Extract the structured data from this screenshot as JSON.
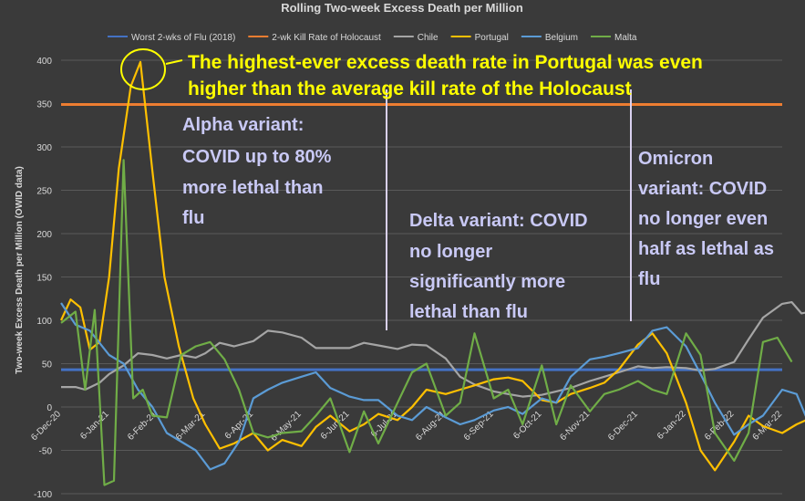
{
  "chart_data": {
    "type": "line",
    "title": "Rolling Two-week Excess Death per Million",
    "ylabel": "Two-week Excess Death per Million (OWID data)",
    "xlabel": "",
    "ylim": [
      -100,
      400
    ],
    "yticks": [
      -100,
      -50,
      0,
      50,
      100,
      150,
      200,
      250,
      300,
      350,
      400
    ],
    "x_tick_labels": [
      "6-Dec-20",
      "6-Jan-21",
      "6-Feb-21",
      "6-Mar-21",
      "6-Apr-21",
      "6-May-21",
      "6-Jun-21",
      "6-Jul-21",
      "6-Aug-21",
      "6-Sep-21",
      "6-Oct-21",
      "6-Nov-21",
      "6-Dec-21",
      "6-Jan-22",
      "6-Feb-22",
      "6-Mar-22"
    ],
    "grid": true,
    "legend_position": "top",
    "reference_lines": [
      {
        "name": "Worst 2-wks of Flu (2018)",
        "value": 43,
        "color": "#4472c4"
      },
      {
        "name": "2-wk Kill Rate of Holocaust",
        "value": 349,
        "color": "#ed7d31"
      }
    ],
    "series": [
      {
        "name": "Chile",
        "color": "#a5a5a5",
        "values": [
          [
            0,
            23
          ],
          [
            0.3,
            23
          ],
          [
            0.5,
            20
          ],
          [
            0.8,
            28
          ],
          [
            1,
            38
          ],
          [
            1.3,
            48
          ],
          [
            1.6,
            62
          ],
          [
            1.9,
            60
          ],
          [
            2.2,
            56
          ],
          [
            2.5,
            60
          ],
          [
            2.8,
            57
          ],
          [
            3,
            62
          ],
          [
            3.3,
            74
          ],
          [
            3.6,
            70
          ],
          [
            4,
            76
          ],
          [
            4.3,
            88
          ],
          [
            4.6,
            86
          ],
          [
            5,
            80
          ],
          [
            5.3,
            68
          ],
          [
            5.6,
            68
          ],
          [
            6,
            68
          ],
          [
            6.3,
            74
          ],
          [
            6.6,
            71
          ],
          [
            7,
            67
          ],
          [
            7.3,
            72
          ],
          [
            7.6,
            71
          ],
          [
            8,
            56
          ],
          [
            8.3,
            35
          ],
          [
            8.6,
            26
          ],
          [
            9,
            18
          ],
          [
            9.3,
            15
          ],
          [
            9.6,
            12
          ],
          [
            10,
            14
          ],
          [
            10.3,
            18
          ],
          [
            10.6,
            22
          ],
          [
            11,
            30
          ],
          [
            11.3,
            35
          ],
          [
            11.6,
            40
          ],
          [
            12,
            47
          ],
          [
            12.3,
            45
          ],
          [
            12.6,
            46
          ],
          [
            13,
            45
          ],
          [
            13.3,
            42
          ],
          [
            13.6,
            44
          ],
          [
            14,
            52
          ],
          [
            14.3,
            78
          ],
          [
            14.6,
            103
          ],
          [
            15,
            119
          ],
          [
            15.2,
            121
          ],
          [
            15.4,
            108
          ],
          [
            15.6,
            110
          ],
          [
            15.8,
            90
          ]
        ]
      },
      {
        "name": "Portugal",
        "color": "#ffc000",
        "values": [
          [
            0,
            100
          ],
          [
            0.2,
            124
          ],
          [
            0.4,
            115
          ],
          [
            0.6,
            66
          ],
          [
            0.8,
            75
          ],
          [
            1,
            150
          ],
          [
            1.2,
            275
          ],
          [
            1.45,
            370
          ],
          [
            1.65,
            398
          ],
          [
            1.9,
            272
          ],
          [
            2.15,
            150
          ],
          [
            2.45,
            70
          ],
          [
            2.75,
            10
          ],
          [
            3,
            -20
          ],
          [
            3.3,
            -48
          ],
          [
            3.6,
            -42
          ],
          [
            4,
            -30
          ],
          [
            4.3,
            -50
          ],
          [
            4.6,
            -38
          ],
          [
            5,
            -45
          ],
          [
            5.3,
            -23
          ],
          [
            5.6,
            -10
          ],
          [
            6,
            -28
          ],
          [
            6.3,
            -20
          ],
          [
            6.6,
            -8
          ],
          [
            7,
            -15
          ],
          [
            7.3,
            0
          ],
          [
            7.6,
            20
          ],
          [
            8,
            15
          ],
          [
            8.3,
            20
          ],
          [
            8.6,
            25
          ],
          [
            9,
            32
          ],
          [
            9.3,
            34
          ],
          [
            9.6,
            30
          ],
          [
            10,
            8
          ],
          [
            10.3,
            5
          ],
          [
            10.6,
            15
          ],
          [
            11,
            22
          ],
          [
            11.3,
            28
          ],
          [
            11.6,
            43
          ],
          [
            12,
            72
          ],
          [
            12.3,
            85
          ],
          [
            12.6,
            62
          ],
          [
            13,
            5
          ],
          [
            13.3,
            -50
          ],
          [
            13.6,
            -73
          ],
          [
            14,
            -40
          ],
          [
            14.3,
            -10
          ],
          [
            14.6,
            -22
          ],
          [
            15,
            -30
          ],
          [
            15.3,
            -20
          ],
          [
            15.5,
            -15
          ]
        ]
      },
      {
        "name": "Belgium",
        "color": "#5b9bd5",
        "values": [
          [
            0,
            120
          ],
          [
            0.3,
            95
          ],
          [
            0.6,
            88
          ],
          [
            1,
            60
          ],
          [
            1.3,
            50
          ],
          [
            1.6,
            20
          ],
          [
            1.9,
            0
          ],
          [
            2.2,
            -30
          ],
          [
            2.5,
            -40
          ],
          [
            2.8,
            -50
          ],
          [
            3.1,
            -72
          ],
          [
            3.4,
            -65
          ],
          [
            3.7,
            -40
          ],
          [
            4,
            10
          ],
          [
            4.3,
            20
          ],
          [
            4.6,
            28
          ],
          [
            5,
            35
          ],
          [
            5.3,
            40
          ],
          [
            5.6,
            22
          ],
          [
            6,
            12
          ],
          [
            6.3,
            8
          ],
          [
            6.6,
            8
          ],
          [
            7,
            -10
          ],
          [
            7.3,
            -15
          ],
          [
            7.6,
            0
          ],
          [
            8,
            -12
          ],
          [
            8.3,
            -20
          ],
          [
            8.6,
            -15
          ],
          [
            9,
            -4
          ],
          [
            9.3,
            0
          ],
          [
            9.6,
            -8
          ],
          [
            10,
            10
          ],
          [
            10.3,
            5
          ],
          [
            10.6,
            35
          ],
          [
            11,
            55
          ],
          [
            11.3,
            58
          ],
          [
            11.6,
            62
          ],
          [
            12,
            68
          ],
          [
            12.3,
            88
          ],
          [
            12.6,
            92
          ],
          [
            13,
            70
          ],
          [
            13.3,
            38
          ],
          [
            13.6,
            5
          ],
          [
            14,
            -32
          ],
          [
            14.3,
            -20
          ],
          [
            14.6,
            -10
          ],
          [
            15,
            20
          ],
          [
            15.3,
            15
          ],
          [
            15.6,
            -25
          ],
          [
            15.9,
            -52
          ]
        ]
      },
      {
        "name": "Malta",
        "color": "#70ad47",
        "values": [
          [
            0,
            97
          ],
          [
            0.3,
            110
          ],
          [
            0.5,
            20
          ],
          [
            0.7,
            112
          ],
          [
            0.9,
            -90
          ],
          [
            1.1,
            -85
          ],
          [
            1.3,
            285
          ],
          [
            1.5,
            10
          ],
          [
            1.7,
            20
          ],
          [
            1.9,
            -10
          ],
          [
            2.2,
            -12
          ],
          [
            2.5,
            60
          ],
          [
            2.8,
            70
          ],
          [
            3.1,
            75
          ],
          [
            3.4,
            55
          ],
          [
            3.7,
            20
          ],
          [
            4,
            -30
          ],
          [
            4.3,
            -35
          ],
          [
            4.6,
            -30
          ],
          [
            5,
            -28
          ],
          [
            5.3,
            -10
          ],
          [
            5.6,
            10
          ],
          [
            6,
            -52
          ],
          [
            6.3,
            -5
          ],
          [
            6.6,
            -42
          ],
          [
            7,
            5
          ],
          [
            7.3,
            40
          ],
          [
            7.6,
            50
          ],
          [
            8,
            -10
          ],
          [
            8.3,
            5
          ],
          [
            8.6,
            85
          ],
          [
            9,
            10
          ],
          [
            9.3,
            20
          ],
          [
            9.6,
            -20
          ],
          [
            10,
            48
          ],
          [
            10.3,
            -20
          ],
          [
            10.6,
            25
          ],
          [
            11,
            -5
          ],
          [
            11.3,
            15
          ],
          [
            11.6,
            20
          ],
          [
            12,
            30
          ],
          [
            12.3,
            20
          ],
          [
            12.6,
            15
          ],
          [
            13,
            85
          ],
          [
            13.3,
            60
          ],
          [
            13.6,
            -30
          ],
          [
            14,
            -62
          ],
          [
            14.3,
            -30
          ],
          [
            14.6,
            75
          ],
          [
            14.9,
            80
          ],
          [
            15.2,
            52
          ]
        ]
      }
    ],
    "annotations": [
      {
        "text_lines": [
          "The highest-ever excess death rate in Portugal was even",
          "higher than the average kill rate of the Holocaust"
        ],
        "color": "#ffff00"
      },
      {
        "text_lines": [
          "Alpha variant:",
          "COVID up to 80%",
          "more lethal than",
          "flu"
        ],
        "color": "#c9c9f5"
      },
      {
        "text_lines": [
          "Delta variant: COVID",
          "no longer",
          "significantly more",
          "lethal than flu"
        ],
        "color": "#c9c9f5"
      },
      {
        "text_lines": [
          "Omicron",
          "variant: COVID",
          "no longer even",
          "half as lethal as",
          "flu"
        ],
        "color": "#c9c9f5"
      }
    ]
  }
}
